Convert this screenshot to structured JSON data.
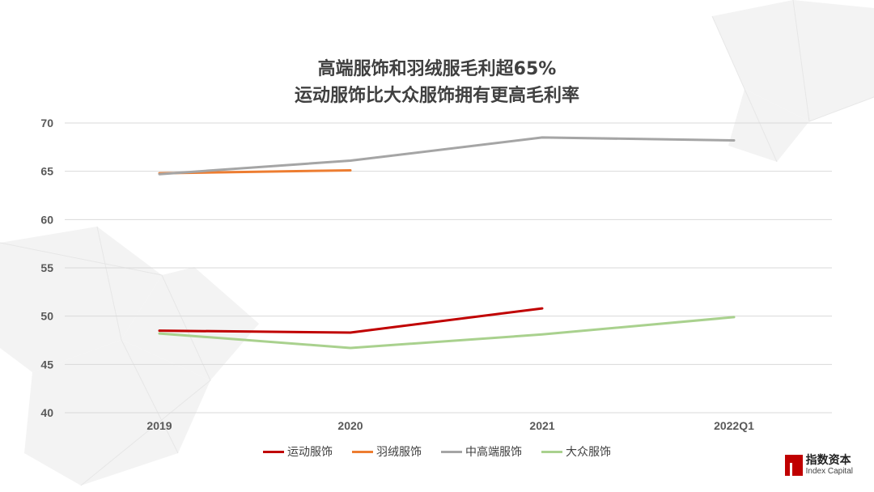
{
  "chart_data": {
    "type": "line",
    "title": [
      "高端服饰和羽绒服毛利超65%",
      "运动服饰比大众服饰拥有更高毛利率"
    ],
    "categories": [
      "2019",
      "2020",
      "2021",
      "2022Q1"
    ],
    "ylim": [
      40,
      70
    ],
    "yticks": [
      40,
      45,
      50,
      55,
      60,
      65,
      70
    ],
    "grid": true,
    "legend_position": "bottom",
    "series": [
      {
        "name": "运动服饰",
        "color": "#c00000",
        "values": [
          48.5,
          48.3,
          50.8,
          null
        ]
      },
      {
        "name": "羽绒服饰",
        "color": "#ed7d31",
        "values": [
          64.8,
          65.1,
          null,
          null
        ]
      },
      {
        "name": "中高端服饰",
        "color": "#a5a5a5",
        "values": [
          64.7,
          66.1,
          68.5,
          68.2
        ]
      },
      {
        "name": "大众服饰",
        "color": "#a9d18e",
        "values": [
          48.2,
          46.7,
          48.1,
          49.9
        ]
      }
    ]
  },
  "logo": {
    "cn": "指数资本",
    "en": "Index Capital"
  }
}
